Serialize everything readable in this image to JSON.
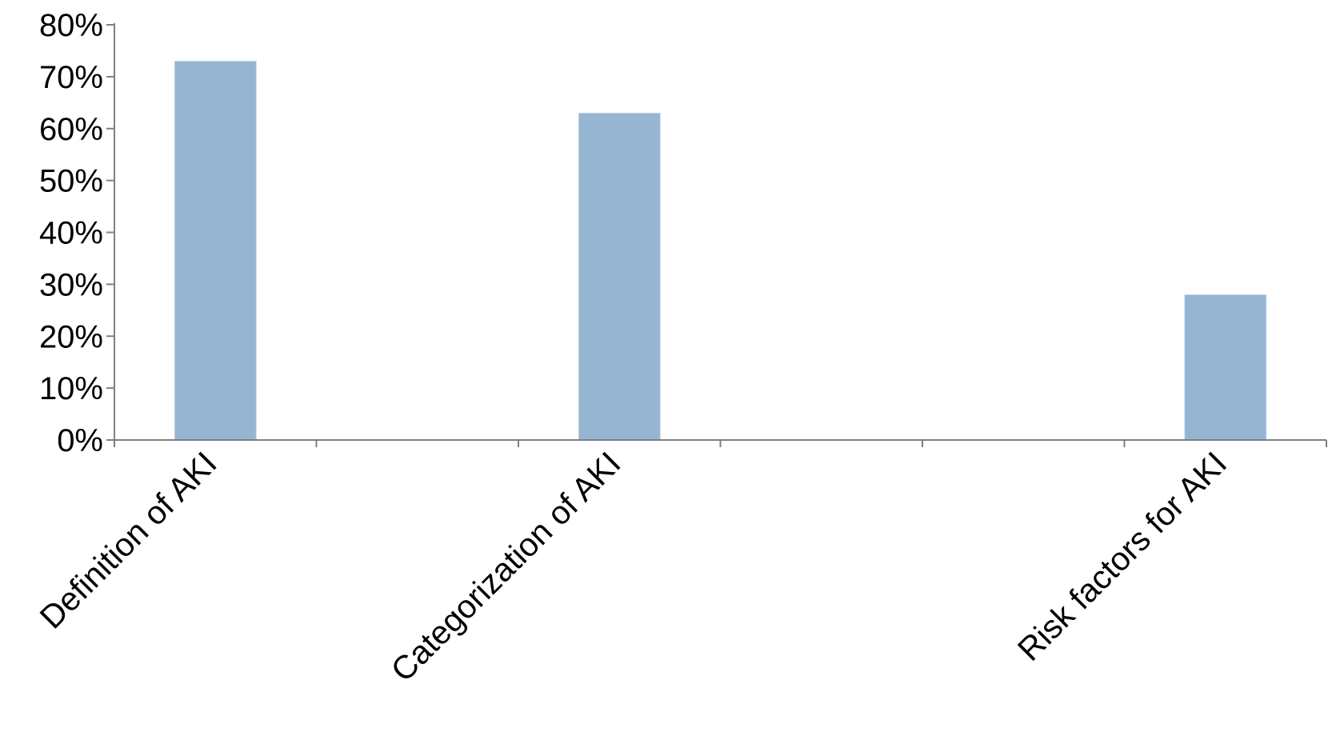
{
  "chart_data": {
    "type": "bar",
    "title": "",
    "xlabel": "",
    "ylabel": "",
    "categories": [
      "Definition of AKI",
      "",
      "Categorization of AKI",
      "",
      "",
      "Risk factors for AKI"
    ],
    "values": [
      73,
      0,
      63,
      0,
      0,
      28
    ],
    "ylim": [
      0,
      80
    ],
    "yticks": [
      0,
      10,
      20,
      30,
      40,
      50,
      60,
      70,
      80
    ],
    "ytick_labels": [
      "0%",
      "10%",
      "20%",
      "30%",
      "40%",
      "50%",
      "60%",
      "70%",
      "80%"
    ],
    "bar_color": "#95b5d3",
    "axis_color": "#808080",
    "grid": false,
    "legend": "none"
  }
}
